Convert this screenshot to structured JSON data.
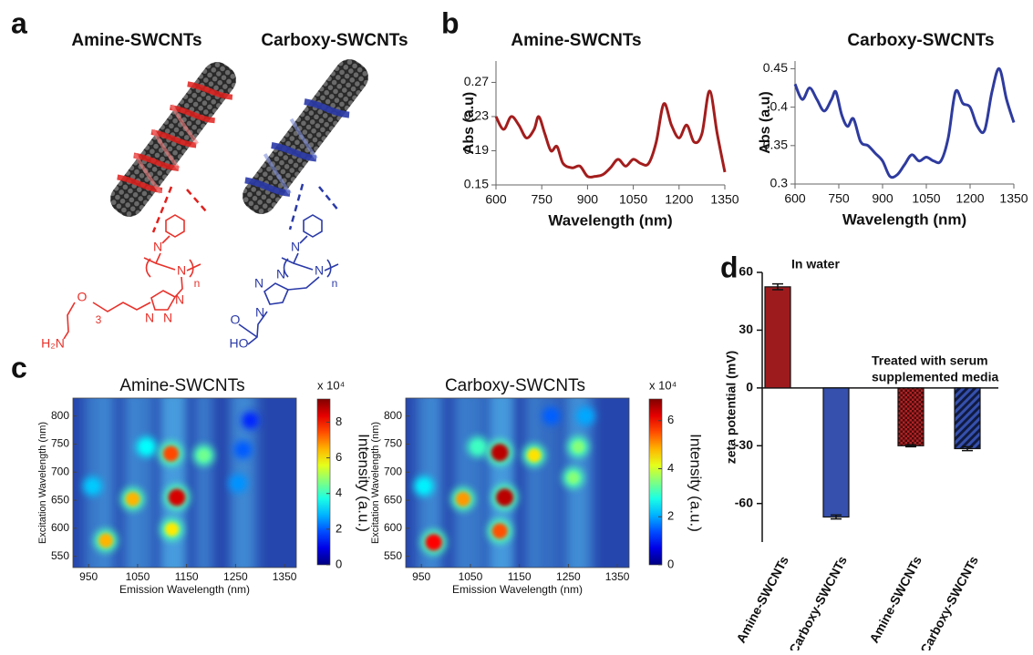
{
  "panel_labels": [
    "a",
    "b",
    "c",
    "d"
  ],
  "panel_a": {
    "titles": [
      "Amine-SWCNTs",
      "Carboxy-SWCNTs"
    ],
    "amine_structure_labels": [
      "N",
      "N",
      "n",
      "O",
      "3",
      "N",
      "N",
      "N",
      "H₂N"
    ],
    "carboxy_structure_labels": [
      "N",
      "N",
      "n",
      "N",
      "N",
      "N",
      "O",
      "HO"
    ]
  },
  "chart_data": [
    {
      "type": "line",
      "title": "Amine-SWCNTs",
      "xlabel": "Wavelength (nm)",
      "ylabel": "Abs (a.u)",
      "x": [
        600,
        625,
        650,
        675,
        700,
        725,
        740,
        760,
        780,
        800,
        820,
        850,
        875,
        900,
        925,
        950,
        975,
        1000,
        1025,
        1050,
        1075,
        1100,
        1125,
        1150,
        1175,
        1200,
        1225,
        1250,
        1275,
        1300,
        1325,
        1350
      ],
      "series": [
        {
          "color": "#a31d1d",
          "values": [
            0.23,
            0.215,
            0.23,
            0.22,
            0.205,
            0.215,
            0.23,
            0.21,
            0.19,
            0.195,
            0.175,
            0.17,
            0.172,
            0.16,
            0.16,
            0.162,
            0.17,
            0.18,
            0.172,
            0.18,
            0.175,
            0.175,
            0.2,
            0.245,
            0.22,
            0.205,
            0.22,
            0.2,
            0.21,
            0.26,
            0.21,
            0.165
          ]
        }
      ],
      "xlim": [
        600,
        1350
      ],
      "ylim": [
        0.15,
        0.295
      ],
      "xticks": [
        600,
        750,
        900,
        1050,
        1200,
        1350
      ],
      "yticks": [
        0.15,
        0.19,
        0.23,
        0.27
      ]
    },
    {
      "type": "line",
      "title": "Carboxy-SWCNTs",
      "xlabel": "Wavelength (nm)",
      "ylabel": "Abs (a.u)",
      "x": [
        600,
        625,
        650,
        675,
        700,
        725,
        740,
        760,
        780,
        800,
        825,
        850,
        875,
        900,
        925,
        950,
        975,
        1000,
        1025,
        1050,
        1075,
        1100,
        1125,
        1150,
        1175,
        1200,
        1225,
        1250,
        1275,
        1300,
        1325,
        1350
      ],
      "series": [
        {
          "color": "#2e3b9e",
          "values": [
            0.43,
            0.41,
            0.425,
            0.41,
            0.395,
            0.41,
            0.42,
            0.39,
            0.375,
            0.385,
            0.355,
            0.35,
            0.34,
            0.33,
            0.31,
            0.312,
            0.325,
            0.338,
            0.33,
            0.335,
            0.33,
            0.33,
            0.36,
            0.42,
            0.405,
            0.4,
            0.375,
            0.37,
            0.42,
            0.45,
            0.41,
            0.38
          ]
        }
      ],
      "xlim": [
        600,
        1350
      ],
      "ylim": [
        0.3,
        0.46
      ],
      "xticks": [
        600,
        750,
        900,
        1050,
        1200,
        1350
      ],
      "yticks": [
        0.3,
        0.35,
        0.4,
        0.45
      ]
    },
    {
      "type": "heatmap",
      "title": "Amine-SWCNTs",
      "xlabel": "Emission Wavelength (nm)",
      "ylabel": "Excitation Wavelength (nm)",
      "colorbar_label": "Intensity (a.u.)",
      "colorbar_multiplier": "x 10⁴",
      "x": [
        985,
        958,
        1040,
        1068,
        1118,
        1130,
        1120,
        1185,
        1255,
        1265,
        1280
      ],
      "y": [
        578,
        675,
        652,
        745,
        733,
        655,
        598,
        730,
        680,
        740,
        792
      ],
      "values": [
        6.5,
        3,
        6.5,
        3.5,
        7.5,
        8.5,
        6,
        4.5,
        2.5,
        2,
        1.5
      ],
      "xlim": [
        918,
        1374
      ],
      "ylim": [
        530,
        832
      ],
      "xticks": [
        950,
        1050,
        1150,
        1250,
        1350
      ],
      "yticks": [
        550,
        600,
        650,
        700,
        750,
        800
      ],
      "clim": [
        0,
        9.3
      ],
      "cticks": [
        0,
        2,
        4,
        6,
        8
      ]
    },
    {
      "type": "heatmap",
      "title": "Carboxy-SWCNTs",
      "xlabel": "Emission Wavelength (nm)",
      "ylabel": "Excitation Wavelength (nm)",
      "colorbar_label": "Intensity (a.u.)",
      "colorbar_multiplier": "x 10⁴",
      "x": [
        975,
        955,
        1035,
        1065,
        1110,
        1120,
        1110,
        1180,
        1260,
        1270,
        1285,
        1215
      ],
      "y": [
        575,
        675,
        652,
        745,
        735,
        655,
        595,
        730,
        690,
        745,
        800,
        800
      ],
      "values": [
        6,
        2.5,
        5,
        3,
        6.5,
        6.5,
        5.5,
        4.5,
        3.5,
        3.5,
        2,
        1.5
      ],
      "xlim": [
        918,
        1374
      ],
      "ylim": [
        530,
        832
      ],
      "xticks": [
        950,
        1050,
        1150,
        1250,
        1350
      ],
      "yticks": [
        550,
        600,
        650,
        700,
        750,
        800
      ],
      "clim": [
        0,
        6.9
      ],
      "cticks": [
        0,
        2,
        4,
        6
      ]
    },
    {
      "type": "bar",
      "ylabel": "zeta potential (mV)",
      "categories": [
        "Amine-SWCNTs",
        "Carboxy-SWCNTs",
        "Amine-SWCNTs",
        "Carboxy-SWCNTs"
      ],
      "values": [
        52.5,
        -67,
        -30,
        -31.5
      ],
      "errors": [
        1.5,
        1,
        0.5,
        1
      ],
      "colors": [
        "#9e1b1d",
        "#3550ad",
        "#9e1b1d",
        "#3550ad"
      ],
      "hatch": [
        false,
        false,
        true,
        true
      ],
      "annotations": [
        "In water",
        "Treated with serum",
        "supplemented media"
      ],
      "ylim": [
        -80,
        60
      ],
      "yticks": [
        60,
        30,
        0,
        -30,
        -60
      ]
    }
  ]
}
